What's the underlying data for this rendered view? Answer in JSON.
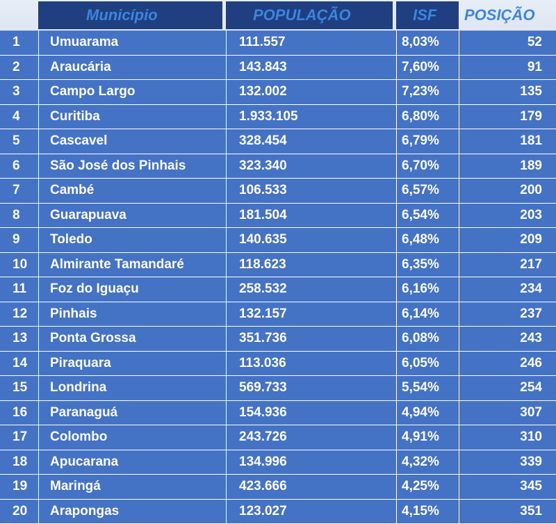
{
  "header": {
    "municipio": "Município",
    "populacao": "POPULAÇÃO",
    "isf": "ISF",
    "posicao": "POSIÇÃO"
  },
  "rows": [
    {
      "n": "1",
      "name": "Umuarama",
      "pop": "111.557",
      "isf": "8,03%",
      "pos": "52"
    },
    {
      "n": "2",
      "name": "Araucária",
      "pop": "143.843",
      "isf": "7,60%",
      "pos": "91"
    },
    {
      "n": "3",
      "name": "Campo Largo",
      "pop": "132.002",
      "isf": "7,23%",
      "pos": "135"
    },
    {
      "n": "4",
      "name": "Curitiba",
      "pop": "1.933.105",
      "isf": "6,80%",
      "pos": "179"
    },
    {
      "n": "5",
      "name": "Cascavel",
      "pop": "328.454",
      "isf": "6,79%",
      "pos": "181"
    },
    {
      "n": "6",
      "name": "São José dos Pinhais",
      "pop": "323.340",
      "isf": "6,70%",
      "pos": "189"
    },
    {
      "n": "7",
      "name": "Cambé",
      "pop": "106.533",
      "isf": "6,57%",
      "pos": "200"
    },
    {
      "n": "8",
      "name": "Guarapuava",
      "pop": "181.504",
      "isf": "6,54%",
      "pos": "203"
    },
    {
      "n": "9",
      "name": "Toledo",
      "pop": "140.635",
      "isf": "6,48%",
      "pos": "209"
    },
    {
      "n": "10",
      "name": "Almirante Tamandaré",
      "pop": "118.623",
      "isf": "6,35%",
      "pos": "217"
    },
    {
      "n": "11",
      "name": "Foz do Iguaçu",
      "pop": "258.532",
      "isf": "6,16%",
      "pos": "234"
    },
    {
      "n": "12",
      "name": "Pinhais",
      "pop": "132.157",
      "isf": "6,14%",
      "pos": "237"
    },
    {
      "n": "13",
      "name": "Ponta Grossa",
      "pop": "351.736",
      "isf": "6,08%",
      "pos": "243"
    },
    {
      "n": "14",
      "name": "Piraquara",
      "pop": "113.036",
      "isf": "6,05%",
      "pos": "246"
    },
    {
      "n": "15",
      "name": "Londrina",
      "pop": "569.733",
      "isf": "5,54%",
      "pos": "254"
    },
    {
      "n": "16",
      "name": "Paranaguá",
      "pop": "154.936",
      "isf": "4,94%",
      "pos": "307"
    },
    {
      "n": "17",
      "name": "Colombo",
      "pop": "243.726",
      "isf": "4,91%",
      "pos": "310"
    },
    {
      "n": "18",
      "name": "Apucarana",
      "pop": "134.996",
      "isf": "4,32%",
      "pos": "339"
    },
    {
      "n": "19",
      "name": "Maringá",
      "pop": "423.666",
      "isf": "4,25%",
      "pos": "345"
    },
    {
      "n": "20",
      "name": "Arapongas",
      "pop": "123.027",
      "isf": "4,15%",
      "pos": "351"
    }
  ],
  "colors": {
    "row_bg": "#4472c4",
    "header_box": "#1f3f80",
    "header_text": "#3a86e0",
    "text": "#ffffff"
  }
}
